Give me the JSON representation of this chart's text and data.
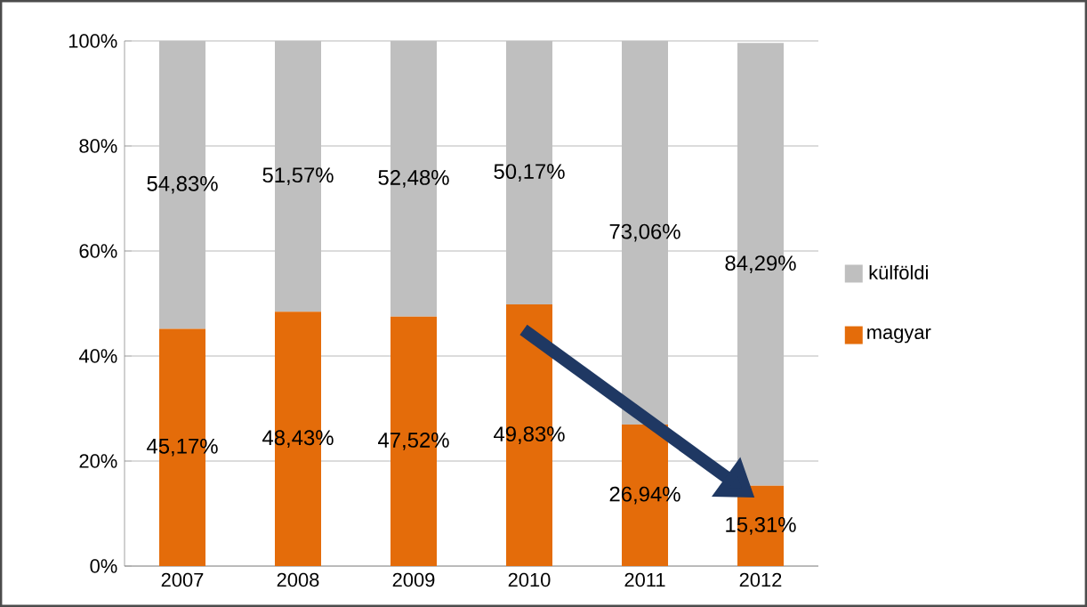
{
  "chart_data": {
    "type": "bar",
    "stacked": true,
    "categories": [
      "2007",
      "2008",
      "2009",
      "2010",
      "2011",
      "2012"
    ],
    "series": [
      {
        "name": "magyar",
        "color": "#e46c0a",
        "values": [
          45.17,
          48.43,
          47.52,
          49.83,
          26.94,
          15.31
        ],
        "value_labels": [
          "45,17%",
          "48,43%",
          "47,52%",
          "49,83%",
          "26,94%",
          "15,31%"
        ]
      },
      {
        "name": "külföldi",
        "color": "#bfbfbf",
        "values": [
          54.83,
          51.57,
          52.48,
          50.17,
          73.06,
          84.29
        ],
        "value_labels": [
          "54,83%",
          "51,57%",
          "52,48%",
          "50,17%",
          "73,06%",
          "84,29%"
        ]
      }
    ],
    "ylim": [
      0,
      100
    ],
    "yticks": [
      {
        "value": 0,
        "label": "0%"
      },
      {
        "value": 20,
        "label": "20%"
      },
      {
        "value": 40,
        "label": "40%"
      },
      {
        "value": 60,
        "label": "60%"
      },
      {
        "value": 80,
        "label": "80%"
      },
      {
        "value": 100,
        "label": "100%"
      }
    ],
    "grid": "y",
    "legend": "right"
  }
}
